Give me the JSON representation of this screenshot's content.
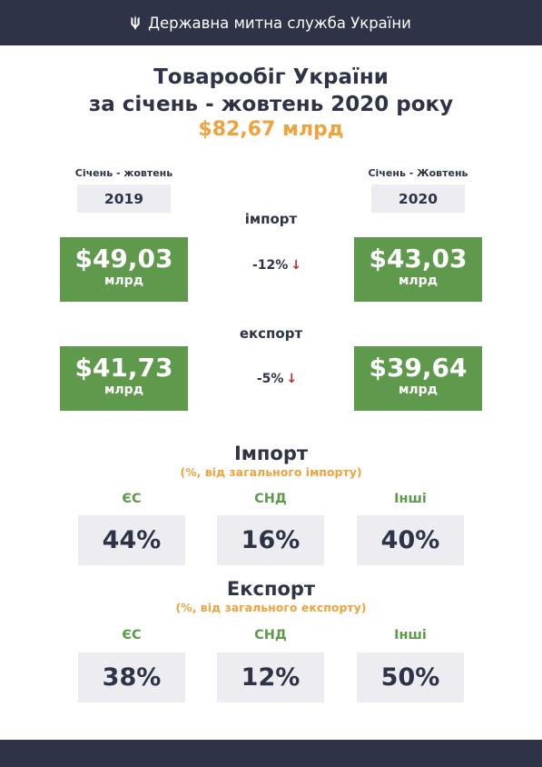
{
  "header": {
    "title": "Державна митна служба України"
  },
  "main": {
    "title_line1": "Товарообіг України",
    "title_line2": "за січень - жовтень 2020 року",
    "total": "$82,67 млрд"
  },
  "periods": {
    "left_label": "Січень - жовтень",
    "left_year": "2019",
    "right_label": "Січень - Жовтень",
    "right_year": "2020"
  },
  "import": {
    "label": "імпорт",
    "value_2019": "$49,03",
    "value_2020": "$43,03",
    "unit": "млрд",
    "change": "-12%",
    "arrow": "↓"
  },
  "export": {
    "label": "експорт",
    "value_2019": "$41,73",
    "value_2020": "$39,64",
    "unit": "млрд",
    "change": "-5%",
    "arrow": "↓"
  },
  "import_structure": {
    "title": "Імпорт",
    "subtitle": "(%, від загального імпорту)",
    "items": [
      {
        "label": "ЄС",
        "value": "44%"
      },
      {
        "label": "СНД",
        "value": "16%"
      },
      {
        "label": "Інші",
        "value": "40%"
      }
    ]
  },
  "export_structure": {
    "title": "Експорт",
    "subtitle": "(%, від загального експорту)",
    "items": [
      {
        "label": "ЄС",
        "value": "38%"
      },
      {
        "label": "СНД",
        "value": "12%"
      },
      {
        "label": "Інші",
        "value": "50%"
      }
    ]
  },
  "colors": {
    "navy": "#2f3348",
    "green": "#5f9a4c",
    "orange": "#f0a23c",
    "light_gray": "#ececf1",
    "arrow_red": "#c22a2a"
  },
  "icons": {
    "header_emblem": "trident-icon"
  }
}
